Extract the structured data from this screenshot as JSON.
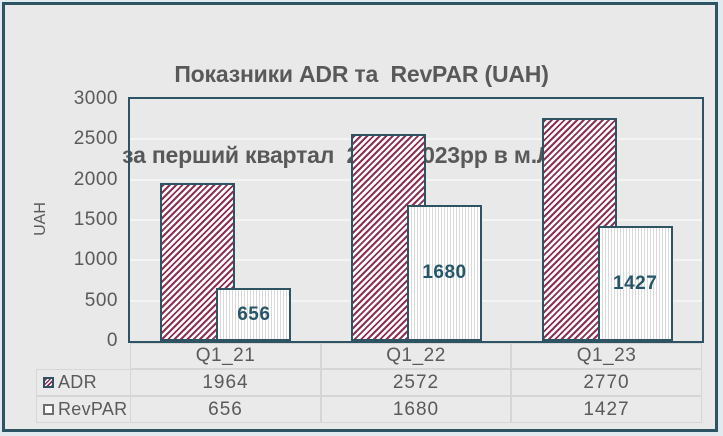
{
  "title": {
    "line1": "Показники ADR та  RevPAR (UAH)",
    "line2": "за перший квартал  2021–2023рр в м.Львів"
  },
  "chart_data": {
    "type": "bar",
    "title": "Показники ADR та RevPAR (UAH) за перший квартал 2021–2023рр в м.Львів",
    "categories": [
      "Q1_21",
      "Q1_22",
      "Q1_23"
    ],
    "series": [
      {
        "name": "ADR",
        "values": [
          1964,
          2572,
          2770
        ],
        "fill": "diagonal-hatch",
        "color": "#8c3055"
      },
      {
        "name": "RevPAR",
        "values": [
          656,
          1680,
          1427
        ],
        "fill": "vertical-lines",
        "color": "#ffffff",
        "data_labels": true
      }
    ],
    "xlabel": "",
    "ylabel": "UAH",
    "ylim": [
      0,
      3000
    ],
    "yticks": [
      0,
      500,
      1000,
      1500,
      2000,
      2500,
      3000
    ],
    "grid": true,
    "legend_position": "data-table-left",
    "data_table": {
      "column_headers": [
        "Q1_21",
        "Q1_22",
        "Q1_23"
      ],
      "rows": [
        {
          "label": "ADR",
          "key": "adr-hatch-swatch",
          "values": [
            "1964",
            "2572",
            "2770"
          ]
        },
        {
          "label": "RevPAR",
          "key": "revpar-white-swatch",
          "values": [
            "656",
            "1680",
            "1427"
          ]
        }
      ]
    }
  },
  "colors": {
    "frame_border": "#2e5363",
    "plot_border": "#2e5363",
    "chart_background": "#e9e9e9",
    "outside_background": "#e0eaef",
    "gridline": "#f4f4f4",
    "adr_hatch": "#8c3055",
    "revpar_line": "#d9d9d9",
    "bar_border": "#2e5363",
    "data_label_text": "#26566a",
    "text": "#5a5a5a",
    "table_border": "#d6d6d6"
  }
}
